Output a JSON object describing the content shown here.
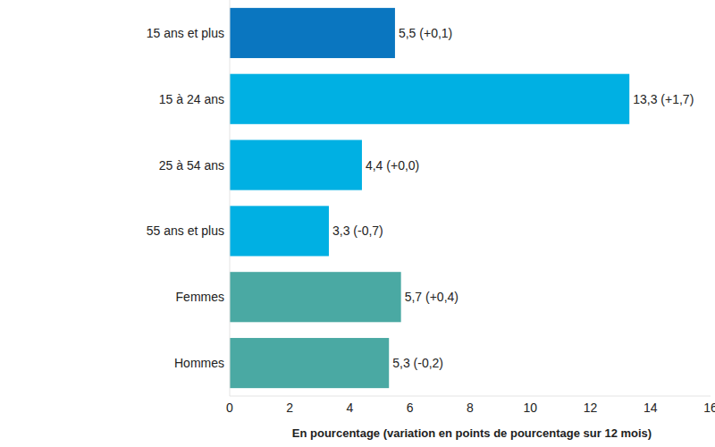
{
  "chart_data": {
    "type": "bar",
    "orientation": "horizontal",
    "categories": [
      "15 ans et plus",
      "15 à 24 ans",
      "25 à 54 ans",
      "55 ans et plus",
      "Femmes",
      "Hommes"
    ],
    "values": [
      5.5,
      13.3,
      4.4,
      3.3,
      5.7,
      5.3
    ],
    "value_labels": [
      "5,5 (+0,1)",
      "13,3 (+1,7)",
      "4,4 (+0,0)",
      "3,3 (-0,7)",
      "5,7 (+0,4)",
      "5,3 (-0,2)"
    ],
    "colors": [
      "#0a76c0",
      "#00b0e3",
      "#00b0e3",
      "#00b0e3",
      "#4aa9a3",
      "#4aa9a3"
    ],
    "data_labels": true,
    "x_label": "En pourcentage (variation en points de pourcentage sur 12 mois)",
    "xlim": [
      0,
      16
    ],
    "xticks": [
      0,
      2,
      4,
      6,
      8,
      10,
      12,
      14,
      16
    ],
    "grid": false
  }
}
